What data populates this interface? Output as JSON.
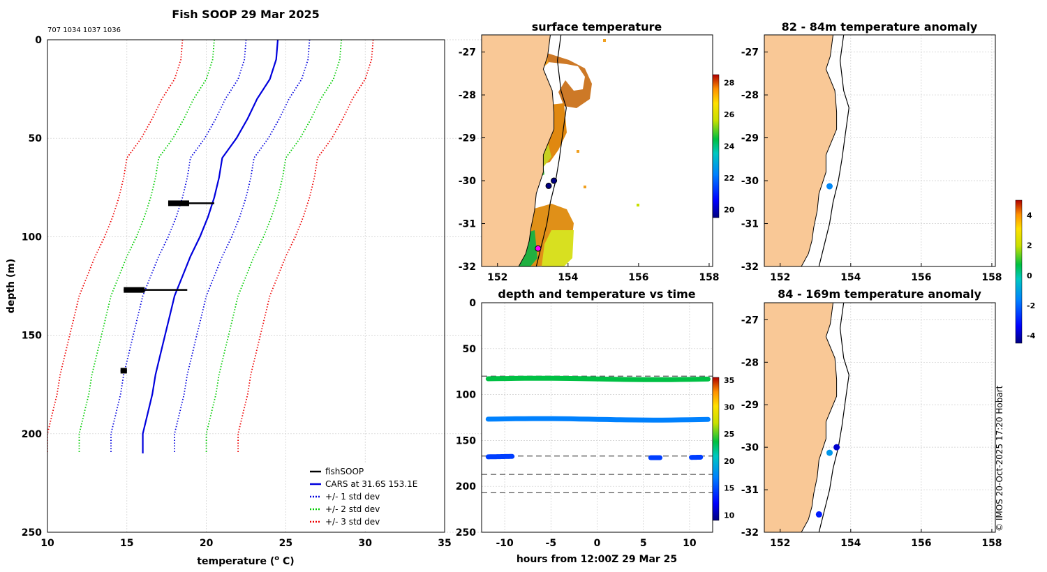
{
  "chart_data": [
    {
      "type": "line",
      "title": "Fish SOOP 29 Mar 2025",
      "ids": "707 1034 1037 1036",
      "xlabel": "temperature (",
      "xlabel_sup": "o",
      "xlabel_end": " C)",
      "ylabel": "depth (m)",
      "xlim": [
        10,
        35
      ],
      "ylim": [
        0,
        250
      ],
      "xticks": [
        "10",
        "15",
        "20",
        "25",
        "30",
        "35"
      ],
      "yticks": [
        "0",
        "50",
        "100",
        "150",
        "200",
        "250"
      ],
      "depths": [
        0,
        10,
        20,
        30,
        40,
        50,
        60,
        70,
        80,
        90,
        100,
        110,
        120,
        130,
        140,
        150,
        160,
        170,
        180,
        190,
        200,
        210
      ],
      "cars_mean": [
        24.5,
        24.4,
        24.0,
        23.2,
        22.6,
        21.9,
        21.0,
        20.8,
        20.5,
        20.1,
        19.6,
        19.0,
        18.5,
        18.0,
        17.7,
        17.4,
        17.1,
        16.8,
        16.6,
        16.3,
        16.0,
        16.0
      ],
      "sd1": 2.0,
      "sd_color": {
        "mean": "#0000dd",
        "sd1": "#0000dd",
        "sd2": "#00cc00",
        "sd3": "#ee0000",
        "obs": "#000000"
      },
      "observations": [
        {
          "depth": 83,
          "t_min": 17.6,
          "t_max": 20.5
        },
        {
          "depth": 127,
          "t_min": 14.8,
          "t_max": 18.8
        },
        {
          "depth": 168,
          "t_min": 14.6,
          "t_max": 15.0
        }
      ],
      "legend": [
        {
          "label": "fishSOOP",
          "style": "solid",
          "color": "#000000"
        },
        {
          "label": "CARS at 31.6S 153.1E",
          "style": "solid",
          "color": "#0000dd"
        },
        {
          "label": "+/- 1 std dev",
          "style": "dotted",
          "color": "#0000dd"
        },
        {
          "label": "+/- 2 std dev",
          "style": "dotted",
          "color": "#00cc00"
        },
        {
          "label": "+/- 3 std dev",
          "style": "dotted",
          "color": "#ee0000"
        }
      ]
    },
    {
      "type": "heatmap",
      "title": "surface temperature",
      "xticks": [
        "152",
        "154",
        "156",
        "158"
      ],
      "yticks": [
        "-27",
        "-28",
        "-29",
        "-30",
        "-31",
        "-32"
      ],
      "colorbar": {
        "ticks": [
          "28",
          "26",
          "24",
          "22",
          "20"
        ],
        "range": [
          19.5,
          28.5
        ]
      },
      "stations": [
        {
          "lon": 153.6,
          "lat": -30.0,
          "color": "#000080"
        },
        {
          "lon": 153.45,
          "lat": -30.12,
          "color": "#000080"
        },
        {
          "lon": 153.15,
          "lat": -31.58,
          "color": "#ff00ff"
        }
      ]
    },
    {
      "type": "scatter",
      "title": "82 - 84m temperature anomaly",
      "xticks": [
        "152",
        "154",
        "156",
        "158"
      ],
      "yticks": [
        "-27",
        "-28",
        "-29",
        "-30",
        "-31",
        "-32"
      ],
      "points": [
        {
          "lon": 153.4,
          "lat": -30.13,
          "value": -1.5
        }
      ],
      "colorbar": {
        "ticks": [
          "4",
          "2",
          "0",
          "-2",
          "-4"
        ],
        "range": [
          -4.5,
          5
        ]
      }
    },
    {
      "type": "scatter",
      "title": "depth and temperature vs time",
      "xlabel": "hours from 12:00Z 29 Mar 25",
      "xticks": [
        "-10",
        "-5",
        "0",
        "5",
        "10"
      ],
      "yticks": [
        "0",
        "50",
        "100",
        "150",
        "200",
        "250"
      ],
      "xlim": [
        -12.5,
        12.5
      ],
      "ylim": [
        0,
        250
      ],
      "dashed_depths": [
        80,
        167,
        187,
        207
      ],
      "tracks": [
        {
          "depth": 83,
          "temp": 23.5,
          "t_start": -11.8,
          "t_end": 12.0
        },
        {
          "depth": 127,
          "temp": 17.0,
          "t_start": -11.8,
          "t_end": 12.0
        },
        {
          "depth": 168,
          "temp": 14.5,
          "segments": [
            [
              -11.8,
              -9.2
            ],
            [
              5.8,
              6.8
            ],
            [
              10.2,
              11.2
            ]
          ]
        }
      ],
      "colorbar": {
        "ticks": [
          "35",
          "30",
          "25",
          "20",
          "15",
          "10"
        ],
        "range": [
          9,
          35.5
        ]
      }
    },
    {
      "type": "scatter",
      "title": "84 - 169m temperature anomaly",
      "xticks": [
        "152",
        "154",
        "156",
        "158"
      ],
      "yticks": [
        "-27",
        "-28",
        "-29",
        "-30",
        "-31",
        "-32"
      ],
      "points": [
        {
          "lon": 153.6,
          "lat": -30.0,
          "value": -3.8
        },
        {
          "lon": 153.4,
          "lat": -30.13,
          "value": -1.2
        },
        {
          "lon": 153.1,
          "lat": -31.58,
          "value": -3.0
        }
      ]
    }
  ],
  "credit": "© IMOS 20-Oct-2025 17:20 Hobart"
}
